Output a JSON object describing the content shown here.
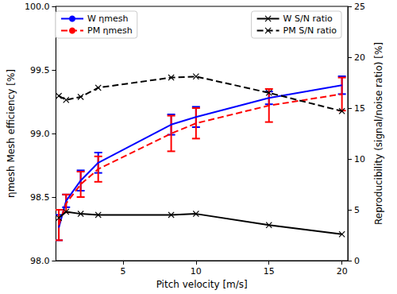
{
  "chart_data": {
    "type": "line",
    "x_label": "Pitch velocity [m/s]",
    "y_label": "ηmesh Mesh efficiency [%]",
    "y2_label": "Reproducibility (signal/noise ratio) [%]",
    "xlim": [
      0.4,
      20.4
    ],
    "xticks": [
      5,
      10,
      15,
      20
    ],
    "ylim": [
      98,
      100
    ],
    "yticks": [
      {
        "value": 98,
        "label": "98.0"
      },
      {
        "value": 98.5,
        "label": "98.5"
      },
      {
        "value": 99,
        "label": "99.0"
      },
      {
        "value": 99.5,
        "label": "99.5"
      },
      {
        "value": 100,
        "label": "100.0"
      }
    ],
    "y2lim": [
      0,
      25
    ],
    "y2ticks": [
      0,
      5,
      10,
      15,
      20,
      25
    ],
    "grid": false,
    "legend": "upper left",
    "x": [
      0.6,
      1.1,
      2.1,
      3.3,
      8.3,
      10,
      15,
      20
    ],
    "series": [
      {
        "name": "W ηmesh",
        "color": "#0000ff",
        "line_style": "solid",
        "marker": "none",
        "values": [
          98.26,
          98.47,
          98.63,
          98.77,
          99.07,
          99.13,
          99.28,
          99.38
        ],
        "errors": [
          0.1,
          0.05,
          0.08,
          0.08,
          0.08,
          0.08,
          0.05,
          0.07
        ]
      },
      {
        "name": "PM ηmesh",
        "color": "#ff0000",
        "line_style": "dashed",
        "marker": "none",
        "values": [
          98.28,
          98.45,
          98.6,
          98.72,
          99.0,
          99.08,
          99.22,
          99.31
        ],
        "errors": [
          0.12,
          0.07,
          0.1,
          0.1,
          0.14,
          0.12,
          0.13,
          0.13
        ]
      },
      {
        "name": "W S/N ratio",
        "color": "#000000",
        "line_style": "solid",
        "marker": "x",
        "axis": "y2",
        "values": [
          4.2,
          4.8,
          4.6,
          4.5,
          4.5,
          4.6,
          3.5,
          2.6
        ]
      },
      {
        "name": "PM S/N ratio",
        "color": "#000000",
        "line_style": "dashed",
        "marker": "x",
        "axis": "y2",
        "values": [
          16.2,
          15.8,
          16.1,
          17.0,
          18.0,
          18.1,
          16.5,
          14.7
        ]
      }
    ]
  }
}
